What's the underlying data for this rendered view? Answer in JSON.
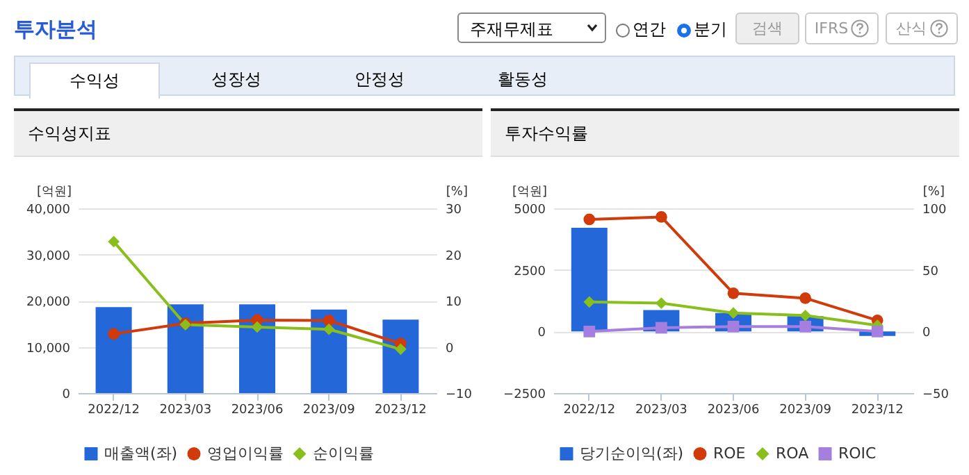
{
  "chart_data": [
    {
      "type": "other",
      "title": "투자분석",
      "annotations": [
        "주재무제표",
        "연간",
        "분기",
        "검색",
        "IFRS",
        "산식",
        "수익성",
        "성장성",
        "안정성",
        "활동성"
      ]
    },
    {
      "type": "bar",
      "title": "수익성지표",
      "ylabel": "[억원]",
      "y2label": "[%]",
      "categories": [
        "2022/12",
        "2023/03",
        "2023/06",
        "2023/09",
        "2023/12"
      ],
      "series": [
        {
          "name": "매출액(좌)",
          "type": "bar",
          "color": "#2367d8",
          "marker": "square",
          "values": [
            18600,
            19200,
            19200,
            18100,
            15900
          ]
        },
        {
          "name": "영업이익률",
          "type": "line",
          "axis": "y2",
          "color": "#d13a0a",
          "marker": "circle",
          "values": [
            2.8,
            5.1,
            5.8,
            5.7,
            0.7
          ]
        },
        {
          "name": "순이익률",
          "type": "line",
          "axis": "y2",
          "color": "#88bf1c",
          "marker": "diamond",
          "values": [
            22.8,
            4.8,
            4.3,
            3.8,
            -0.5
          ]
        }
      ],
      "ylim": [
        0,
        40000
      ],
      "yticks": [
        0,
        {
          "value": 10000,
          "label": "10,000"
        },
        {
          "value": 20000,
          "label": "20,000"
        },
        {
          "value": 30000,
          "label": "30,000"
        },
        {
          "value": 40000,
          "label": "40,000"
        }
      ],
      "y2lim": [
        -10,
        30
      ],
      "y2ticks": [
        -10,
        0,
        10,
        20,
        30
      ],
      "grid": "y",
      "legend": "bottom"
    },
    {
      "type": "bar",
      "title": "투자수익률",
      "ylabel": "[억원]",
      "y2label": "[%]",
      "categories": [
        "2022/12",
        "2023/03",
        "2023/06",
        "2023/09",
        "2023/12"
      ],
      "series": [
        {
          "name": "당기순이익(좌)",
          "type": "bar",
          "color": "#2367d8",
          "marker": "square",
          "values": [
            4210,
            870,
            750,
            620,
            -180
          ]
        },
        {
          "name": "ROE",
          "type": "line",
          "axis": "y2",
          "color": "#d13a0a",
          "marker": "circle",
          "values": [
            91,
            93,
            31,
            27,
            9
          ]
        },
        {
          "name": "ROA",
          "type": "line",
          "axis": "y2",
          "color": "#88bf1c",
          "marker": "diamond",
          "values": [
            24,
            23,
            15,
            13,
            5
          ]
        },
        {
          "name": "ROIC",
          "type": "line",
          "axis": "y2",
          "color": "#a47fe0",
          "marker": "square",
          "values": [
            0,
            3,
            4,
            4,
            0
          ]
        }
      ],
      "ylim": [
        -2500,
        5000
      ],
      "yticks": [
        -2500,
        0,
        2500,
        5000
      ],
      "y2lim": [
        -50,
        100
      ],
      "y2ticks": [
        -50,
        0,
        50,
        100
      ],
      "grid": "y",
      "legend": "bottom"
    }
  ]
}
